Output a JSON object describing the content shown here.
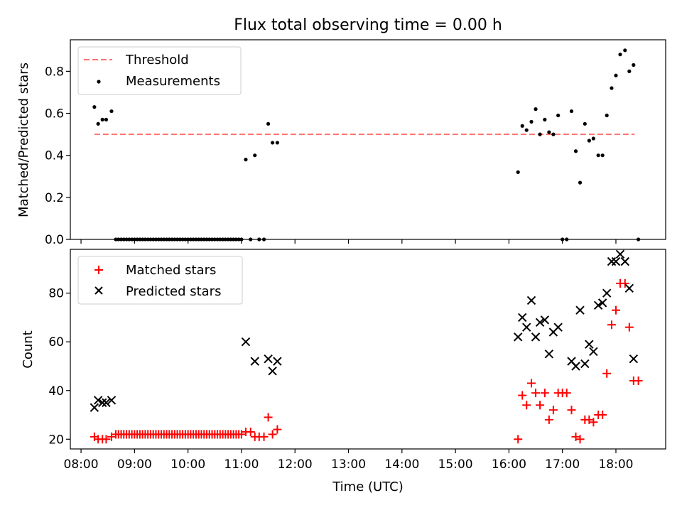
{
  "figure_title": "Flux total observing time = 0.00 h",
  "x_tick_labels": [
    "08:00",
    "09:00",
    "10:00",
    "11:00",
    "12:00",
    "13:00",
    "14:00",
    "15:00",
    "16:00",
    "17:00",
    "18:00"
  ],
  "colors": {
    "threshold": "#ff7070",
    "measurement": "#000000",
    "matched": "#ff0000",
    "predicted": "#000000"
  },
  "chart_data": [
    {
      "type": "scatter",
      "title": "Flux total observing time = 0.00 h",
      "xlabel": "",
      "ylabel": "Matched/Predicted stars",
      "x_unit": "hours UTC",
      "xlim": [
        7.8,
        18.93
      ],
      "ylim": [
        0,
        0.95
      ],
      "y_ticks": [
        0.0,
        0.2,
        0.4,
        0.6,
        0.8
      ],
      "y_tick_labels": [
        "0.0",
        "0.2",
        "0.4",
        "0.6",
        "0.8"
      ],
      "legend_position": "top-left",
      "lines": [
        {
          "name": "Threshold",
          "style": "dashed",
          "x": [
            8.25,
            18.35
          ],
          "y": [
            0.5,
            0.5
          ]
        }
      ],
      "series": [
        {
          "name": "Measurements",
          "marker": "dot",
          "x": [
            8.25,
            8.32,
            8.4,
            8.47,
            8.57,
            8.65,
            8.7,
            8.75,
            8.8,
            8.85,
            8.9,
            8.95,
            9.0,
            9.05,
            9.1,
            9.15,
            9.2,
            9.25,
            9.3,
            9.35,
            9.4,
            9.45,
            9.5,
            9.55,
            9.6,
            9.65,
            9.7,
            9.75,
            9.8,
            9.85,
            9.9,
            9.95,
            10.0,
            10.05,
            10.1,
            10.15,
            10.2,
            10.25,
            10.3,
            10.35,
            10.4,
            10.45,
            10.5,
            10.55,
            10.6,
            10.65,
            10.7,
            10.75,
            10.8,
            10.85,
            10.9,
            10.95,
            11.0,
            11.08,
            11.17,
            11.25,
            11.33,
            11.42,
            11.5,
            11.58,
            11.67,
            16.17,
            16.25,
            16.33,
            16.42,
            16.5,
            16.58,
            16.67,
            16.75,
            16.83,
            16.92,
            17.0,
            17.08,
            17.17,
            17.25,
            17.33,
            17.42,
            17.5,
            17.58,
            17.67,
            17.75,
            17.83,
            17.92,
            18.0,
            18.08,
            18.17,
            18.25,
            18.33,
            18.42
          ],
          "y": [
            0.63,
            0.55,
            0.57,
            0.57,
            0.61,
            0.0,
            0.0,
            0.0,
            0.0,
            0.0,
            0.0,
            0.0,
            0.0,
            0.0,
            0.0,
            0.0,
            0.0,
            0.0,
            0.0,
            0.0,
            0.0,
            0.0,
            0.0,
            0.0,
            0.0,
            0.0,
            0.0,
            0.0,
            0.0,
            0.0,
            0.0,
            0.0,
            0.0,
            0.0,
            0.0,
            0.0,
            0.0,
            0.0,
            0.0,
            0.0,
            0.0,
            0.0,
            0.0,
            0.0,
            0.0,
            0.0,
            0.0,
            0.0,
            0.0,
            0.0,
            0.0,
            0.0,
            0.0,
            0.38,
            0.0,
            0.4,
            0.0,
            0.0,
            0.55,
            0.46,
            0.46,
            0.32,
            0.54,
            0.52,
            0.56,
            0.62,
            0.5,
            0.57,
            0.51,
            0.5,
            0.59,
            0.0,
            0.0,
            0.61,
            0.42,
            0.27,
            0.55,
            0.47,
            0.48,
            0.4,
            0.4,
            0.59,
            0.72,
            0.78,
            0.88,
            0.9,
            0.8,
            0.83,
            0.0
          ]
        }
      ]
    },
    {
      "type": "scatter",
      "title": "",
      "xlabel": "Time (UTC)",
      "ylabel": "Count",
      "x_unit": "hours UTC",
      "xlim": [
        7.8,
        18.93
      ],
      "ylim": [
        16,
        98
      ],
      "y_ticks": [
        20,
        40,
        60,
        80
      ],
      "y_tick_labels": [
        "20",
        "40",
        "60",
        "80"
      ],
      "legend_position": "top-left",
      "series": [
        {
          "name": "Matched stars",
          "marker": "plus",
          "x": [
            8.25,
            8.32,
            8.4,
            8.47,
            8.57,
            8.65,
            8.7,
            8.75,
            8.8,
            8.85,
            8.9,
            8.95,
            9.0,
            9.05,
            9.1,
            9.15,
            9.2,
            9.25,
            9.3,
            9.35,
            9.4,
            9.45,
            9.5,
            9.55,
            9.6,
            9.65,
            9.7,
            9.75,
            9.8,
            9.85,
            9.9,
            9.95,
            10.0,
            10.05,
            10.1,
            10.15,
            10.2,
            10.25,
            10.3,
            10.35,
            10.4,
            10.45,
            10.5,
            10.55,
            10.6,
            10.65,
            10.7,
            10.75,
            10.8,
            10.85,
            10.9,
            10.95,
            11.0,
            11.08,
            11.17,
            11.25,
            11.33,
            11.42,
            11.5,
            11.58,
            11.67,
            16.17,
            16.25,
            16.33,
            16.42,
            16.5,
            16.58,
            16.67,
            16.75,
            16.83,
            16.92,
            17.0,
            17.08,
            17.17,
            17.25,
            17.33,
            17.42,
            17.5,
            17.58,
            17.67,
            17.75,
            17.83,
            17.92,
            18.0,
            18.08,
            18.17,
            18.25,
            18.33,
            18.42
          ],
          "y": [
            21,
            20,
            20,
            20,
            21,
            22,
            22,
            22,
            22,
            22,
            22,
            22,
            22,
            22,
            22,
            22,
            22,
            22,
            22,
            22,
            22,
            22,
            22,
            22,
            22,
            22,
            22,
            22,
            22,
            22,
            22,
            22,
            22,
            22,
            22,
            22,
            22,
            22,
            22,
            22,
            22,
            22,
            22,
            22,
            22,
            22,
            22,
            22,
            22,
            22,
            22,
            22,
            22,
            23,
            23,
            21,
            21,
            21,
            29,
            22,
            24,
            20,
            38,
            34,
            43,
            39,
            34,
            39,
            28,
            32,
            39,
            39,
            39,
            32,
            21,
            20,
            28,
            28,
            27,
            30,
            30,
            47,
            67,
            73,
            84,
            84,
            66,
            44,
            44
          ]
        },
        {
          "name": "Predicted stars",
          "marker": "x",
          "x": [
            8.25,
            8.32,
            8.4,
            8.47,
            8.57,
            11.08,
            11.25,
            11.5,
            11.58,
            11.67,
            16.17,
            16.25,
            16.33,
            16.42,
            16.5,
            16.58,
            16.67,
            16.75,
            16.83,
            16.92,
            17.17,
            17.25,
            17.33,
            17.42,
            17.5,
            17.58,
            17.67,
            17.75,
            17.83,
            17.92,
            18.0,
            18.08,
            18.17,
            18.25,
            18.33
          ],
          "y": [
            33,
            36,
            35,
            35,
            36,
            60,
            52,
            53,
            48,
            52,
            62,
            70,
            66,
            77,
            62,
            68,
            69,
            55,
            64,
            66,
            52,
            50,
            73,
            51,
            59,
            56,
            75,
            76,
            80,
            93,
            93,
            96,
            93,
            82,
            53
          ]
        }
      ]
    }
  ]
}
